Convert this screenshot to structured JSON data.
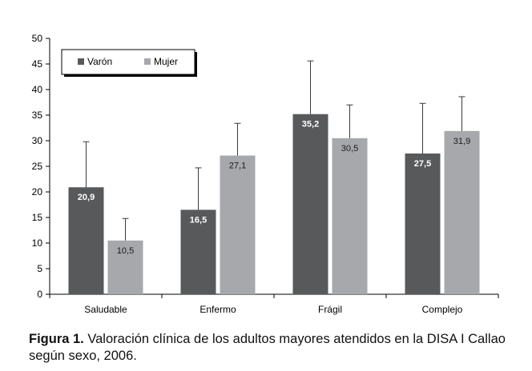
{
  "chart_data": {
    "type": "bar",
    "title": "",
    "xlabel": "",
    "ylabel": "",
    "ylim": [
      0,
      50
    ],
    "yticks": [
      0,
      5,
      10,
      15,
      20,
      25,
      30,
      35,
      40,
      45,
      50
    ],
    "grid": false,
    "legend_position": "top-left",
    "categories": [
      "Saludable",
      "Enfermo",
      "Frágil",
      "Complejo"
    ],
    "series": [
      {
        "name": "Varón",
        "color": "#58595b",
        "values": [
          20.9,
          16.5,
          35.2,
          27.5
        ],
        "value_labels": [
          "20,9",
          "16,5",
          "35,2",
          "27,5"
        ],
        "error_upper": [
          29.8,
          24.7,
          45.6,
          37.3
        ]
      },
      {
        "name": "Mujer",
        "color": "#a6a8ab",
        "values": [
          10.5,
          27.1,
          30.5,
          31.9
        ],
        "value_labels": [
          "10,5",
          "27,1",
          "30,5",
          "31,9"
        ],
        "error_upper": [
          14.8,
          33.4,
          37.0,
          38.6
        ]
      }
    ]
  },
  "caption": {
    "label": "Figura 1.",
    "text": " Valoración clínica de los adultos mayores atendidos en la DISA I Callao según sexo, 2006."
  }
}
